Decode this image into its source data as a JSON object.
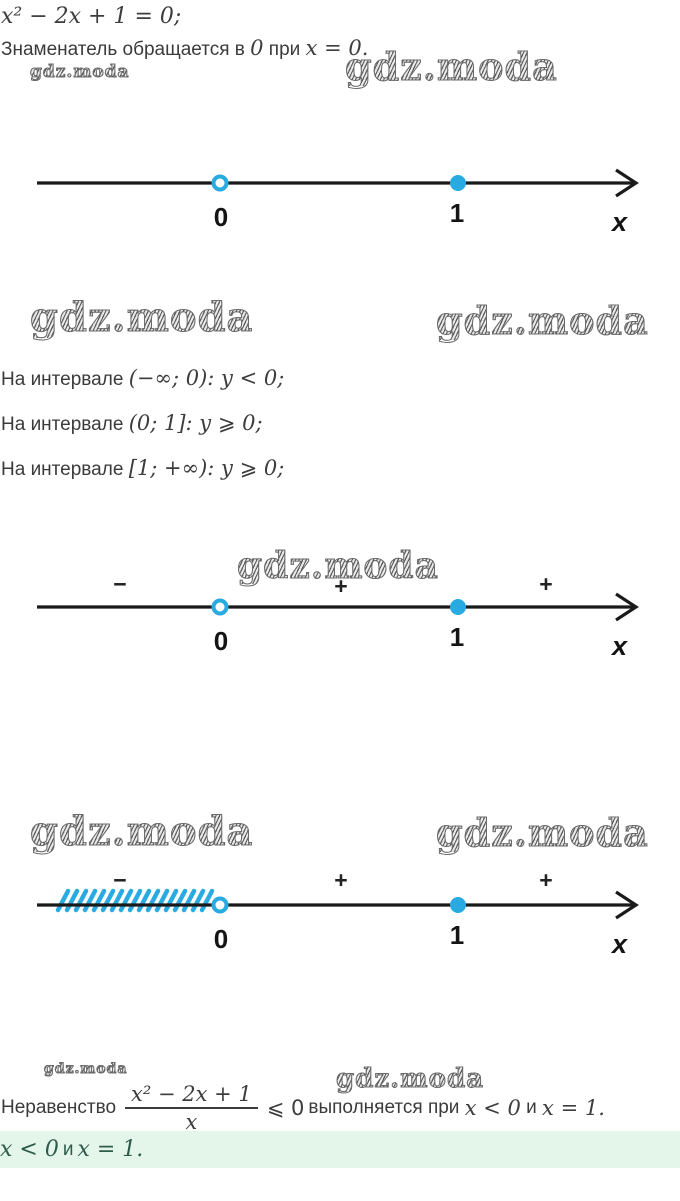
{
  "watermark": {
    "label": "gdz.moda"
  },
  "colors": {
    "accent_cyan": "#29abe2",
    "axis_line": "#1a1a1a",
    "text": "#3b3b3b",
    "answer_bg": "#e4f5ea",
    "answer_text": "#2e5b4b",
    "watermark_gray": "#767676"
  },
  "intro": {
    "equation": "x² − 2x + 1 = 0;",
    "note_prefix": "Знаменатель обращается в ",
    "note_math1": "0",
    "note_mid": " при ",
    "note_math2": "x = 0."
  },
  "intervals": [
    {
      "prefix": "На интервале ",
      "range": "(−∞;  0):",
      "conclusion": " y < 0;"
    },
    {
      "prefix": "На интервале ",
      "range": "(0;  1]:",
      "conclusion": " y ⩾ 0;"
    },
    {
      "prefix": "На интервале ",
      "range": "[1;  +∞):",
      "conclusion": " y ⩾ 0;"
    }
  ],
  "number_lines": [
    {
      "axis_label": "x",
      "points": [
        {
          "value": "0",
          "type": "open"
        },
        {
          "value": "1",
          "type": "filled"
        }
      ],
      "signs": []
    },
    {
      "axis_label": "x",
      "points": [
        {
          "value": "0",
          "type": "open"
        },
        {
          "value": "1",
          "type": "filled"
        }
      ],
      "signs": [
        {
          "label": "−",
          "region": "(−∞; 0)"
        },
        {
          "label": "+",
          "region": "(0; 1)"
        },
        {
          "label": "+",
          "region": "(1; +∞)"
        }
      ]
    },
    {
      "axis_label": "x",
      "points": [
        {
          "value": "0",
          "type": "open"
        },
        {
          "value": "1",
          "type": "filled"
        }
      ],
      "signs": [
        {
          "label": "−",
          "region": "(−∞; 0)"
        },
        {
          "label": "+",
          "region": "(0; 1)"
        },
        {
          "label": "+",
          "region": "(1; +∞)"
        }
      ],
      "shaded_region": "x < 0"
    }
  ],
  "conclusion": {
    "prefix": "Неравенство",
    "fraction": {
      "numerator": "x² − 2x + 1",
      "denominator": "x"
    },
    "relation": "⩽ 0",
    "suffix": "выполняется при",
    "cond1": "x < 0",
    "and": "и",
    "cond2": "x = 1."
  },
  "answer": {
    "cond1": "x < 0",
    "and": "и",
    "cond2": "x = 1."
  }
}
